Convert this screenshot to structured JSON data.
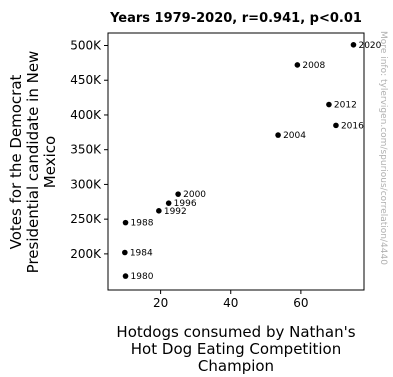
{
  "chart_data": {
    "type": "scatter",
    "title": "Years 1979-2020, r=0.941, p<0.01",
    "xlabel_lines": [
      "Hotdogs consumed by Nathan's",
      "Hot Dog Eating Competition",
      "Champion"
    ],
    "ylabel_lines": [
      "Votes for the Democrat",
      "Presidential candidate in New",
      "Mexico"
    ],
    "watermark": "More info: tylervigen.com/spurious/correlation/4440",
    "xlim": [
      5,
      78
    ],
    "ylim": [
      148000,
      518000
    ],
    "x_ticks": [
      {
        "value": 20,
        "label": "20"
      },
      {
        "value": 40,
        "label": "40"
      },
      {
        "value": 60,
        "label": "60"
      }
    ],
    "y_ticks": [
      {
        "value": 200000,
        "label": "200K"
      },
      {
        "value": 250000,
        "label": "250K"
      },
      {
        "value": 300000,
        "label": "300K"
      },
      {
        "value": 350000,
        "label": "350K"
      },
      {
        "value": 400000,
        "label": "400K"
      },
      {
        "value": 450000,
        "label": "450K"
      },
      {
        "value": 500000,
        "label": "500K"
      }
    ],
    "grid": false,
    "marker_color": "#000000",
    "points": [
      {
        "label": "1980",
        "x": 10,
        "y": 168000
      },
      {
        "label": "1984",
        "x": 9.8,
        "y": 202000
      },
      {
        "label": "1988",
        "x": 10,
        "y": 245000
      },
      {
        "label": "1992",
        "x": 19.5,
        "y": 262000
      },
      {
        "label": "1996",
        "x": 22.3,
        "y": 273000
      },
      {
        "label": "2000",
        "x": 25,
        "y": 286000
      },
      {
        "label": "2004",
        "x": 53.5,
        "y": 371000
      },
      {
        "label": "2008",
        "x": 59,
        "y": 472000
      },
      {
        "label": "2012",
        "x": 68,
        "y": 415000
      },
      {
        "label": "2016",
        "x": 70,
        "y": 385000
      },
      {
        "label": "2020",
        "x": 75,
        "y": 501000
      }
    ]
  }
}
